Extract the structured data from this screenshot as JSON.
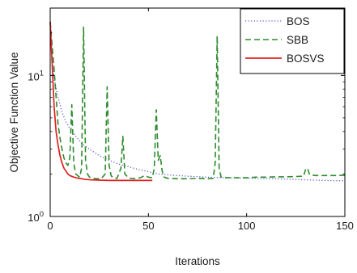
{
  "chart_data": {
    "type": "line",
    "xlabel": "Iterations",
    "ylabel": "Objective Function Value",
    "xlim": [
      0,
      150
    ],
    "ylim": [
      1,
      30
    ],
    "yscale": "log",
    "grid": false,
    "legend_position": "top-right",
    "x_ticks": [
      {
        "value": 0,
        "label": "0"
      },
      {
        "value": 50,
        "label": "50"
      },
      {
        "value": 100,
        "label": "100"
      },
      {
        "value": 150,
        "label": "150"
      }
    ],
    "y_ticks": [
      {
        "value": 1,
        "base": "10",
        "exp": "0"
      },
      {
        "value": 10,
        "base": "10",
        "exp": "1"
      }
    ],
    "series": [
      {
        "name": "BOS",
        "color": "#5a5ac8",
        "style": "dotted",
        "points": [
          [
            0,
            24
          ],
          [
            1,
            13
          ],
          [
            2,
            9.5
          ],
          [
            4,
            7
          ],
          [
            6,
            5.5
          ],
          [
            8,
            4.7
          ],
          [
            10,
            4.2
          ],
          [
            13,
            3.7
          ],
          [
            16,
            3.3
          ],
          [
            20,
            3.0
          ],
          [
            25,
            2.7
          ],
          [
            30,
            2.5
          ],
          [
            35,
            2.35
          ],
          [
            40,
            2.25
          ],
          [
            45,
            2.15
          ],
          [
            50,
            2.08
          ],
          [
            55,
            2.0
          ],
          [
            60,
            1.97
          ],
          [
            70,
            1.93
          ],
          [
            80,
            1.9
          ],
          [
            90,
            1.88
          ],
          [
            100,
            1.87
          ],
          [
            110,
            1.86
          ],
          [
            120,
            1.84
          ],
          [
            130,
            1.82
          ],
          [
            140,
            1.8
          ],
          [
            150,
            1.79
          ]
        ]
      },
      {
        "name": "SBB",
        "color": "#2e8b2e",
        "style": "dashed",
        "points": [
          [
            0,
            24
          ],
          [
            2,
            11
          ],
          [
            4,
            4.5
          ],
          [
            5,
            3.6
          ],
          [
            6,
            3.0
          ],
          [
            7,
            2.6
          ],
          [
            8,
            2.4
          ],
          [
            9,
            2.3
          ],
          [
            10,
            2.6
          ],
          [
            11,
            6.2
          ],
          [
            12,
            2.4
          ],
          [
            13,
            2.0
          ],
          [
            14,
            1.95
          ],
          [
            15,
            1.9
          ],
          [
            16,
            2.2
          ],
          [
            17,
            22
          ],
          [
            18,
            2.5
          ],
          [
            19,
            2.0
          ],
          [
            20,
            1.9
          ],
          [
            22,
            1.86
          ],
          [
            24,
            1.85
          ],
          [
            26,
            1.85
          ],
          [
            28,
            2.0
          ],
          [
            29,
            8.3
          ],
          [
            30,
            2.3
          ],
          [
            31,
            1.95
          ],
          [
            32,
            1.88
          ],
          [
            34,
            1.86
          ],
          [
            36,
            2.2
          ],
          [
            37,
            3.7
          ],
          [
            38,
            2.0
          ],
          [
            40,
            1.87
          ],
          [
            43,
            1.85
          ],
          [
            46,
            1.88
          ],
          [
            48,
            1.95
          ],
          [
            50,
            1.9
          ],
          [
            52,
            1.88
          ],
          [
            53,
            2.2
          ],
          [
            54,
            5.7
          ],
          [
            55,
            2.5
          ],
          [
            56,
            2.7
          ],
          [
            57,
            2.1
          ],
          [
            58,
            1.9
          ],
          [
            60,
            1.86
          ],
          [
            65,
            1.85
          ],
          [
            70,
            1.85
          ],
          [
            75,
            1.86
          ],
          [
            80,
            1.85
          ],
          [
            83,
            1.86
          ],
          [
            84,
            2.4
          ],
          [
            85,
            19
          ],
          [
            86,
            2.2
          ],
          [
            87,
            1.9
          ],
          [
            90,
            1.88
          ],
          [
            95,
            1.88
          ],
          [
            100,
            1.88
          ],
          [
            105,
            1.9
          ],
          [
            110,
            1.9
          ],
          [
            115,
            1.91
          ],
          [
            120,
            1.91
          ],
          [
            125,
            1.92
          ],
          [
            129,
            1.93
          ],
          [
            130,
            2.15
          ],
          [
            131,
            2.2
          ],
          [
            132,
            1.98
          ],
          [
            135,
            1.95
          ],
          [
            140,
            1.95
          ],
          [
            145,
            1.95
          ],
          [
            150,
            1.96
          ]
        ]
      },
      {
        "name": "BOSVS",
        "color": "#e02020",
        "style": "solid",
        "points": [
          [
            0,
            24
          ],
          [
            1,
            12
          ],
          [
            2,
            6
          ],
          [
            3,
            4
          ],
          [
            4,
            3.2
          ],
          [
            5,
            2.7
          ],
          [
            6,
            2.4
          ],
          [
            7,
            2.2
          ],
          [
            8,
            2.1
          ],
          [
            9,
            2.0
          ],
          [
            10,
            1.95
          ],
          [
            12,
            1.9
          ],
          [
            14,
            1.87
          ],
          [
            16,
            1.85
          ],
          [
            18,
            1.83
          ],
          [
            20,
            1.82
          ],
          [
            25,
            1.81
          ],
          [
            30,
            1.8
          ],
          [
            40,
            1.8
          ],
          [
            45,
            1.8
          ],
          [
            50,
            1.8
          ],
          [
            52,
            1.8
          ]
        ]
      }
    ]
  }
}
